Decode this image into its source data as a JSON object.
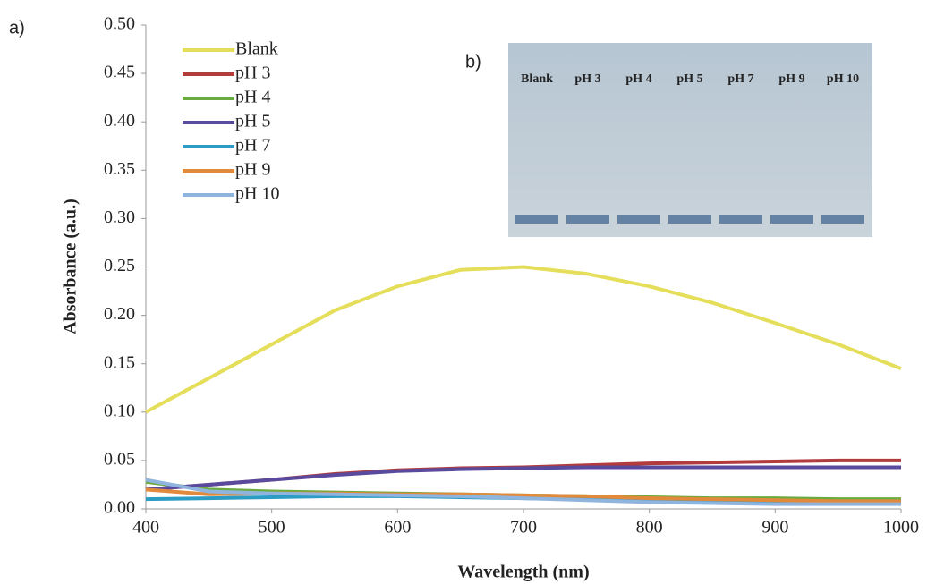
{
  "chart_data": {
    "type": "line",
    "panel_label": "a)",
    "x_label": "Wavelength (nm)",
    "y_label": "Absorbance (a.u.)",
    "x": [
      400,
      450,
      500,
      550,
      600,
      650,
      700,
      750,
      800,
      850,
      900,
      950,
      1000
    ],
    "series": [
      {
        "name": "Blank",
        "color": "#e4de5a",
        "values": [
          0.1,
          0.135,
          0.17,
          0.205,
          0.23,
          0.247,
          0.25,
          0.243,
          0.23,
          0.213,
          0.192,
          0.17,
          0.145
        ]
      },
      {
        "name": "pH 3",
        "color": "#b23b3b",
        "values": [
          0.02,
          0.025,
          0.03,
          0.036,
          0.04,
          0.042,
          0.043,
          0.045,
          0.047,
          0.048,
          0.049,
          0.05,
          0.05
        ]
      },
      {
        "name": "pH 4",
        "color": "#6aaa3f",
        "values": [
          0.028,
          0.02,
          0.018,
          0.017,
          0.016,
          0.015,
          0.014,
          0.013,
          0.012,
          0.011,
          0.011,
          0.01,
          0.01
        ]
      },
      {
        "name": "pH 5",
        "color": "#5a4a9e",
        "values": [
          0.02,
          0.025,
          0.03,
          0.035,
          0.039,
          0.041,
          0.042,
          0.043,
          0.043,
          0.043,
          0.043,
          0.043,
          0.043
        ]
      },
      {
        "name": "pH 7",
        "color": "#2c9cc4",
        "values": [
          0.01,
          0.011,
          0.012,
          0.013,
          0.013,
          0.012,
          0.011,
          0.01,
          0.009,
          0.008,
          0.008,
          0.007,
          0.007
        ]
      },
      {
        "name": "pH 9",
        "color": "#e28a3c",
        "values": [
          0.02,
          0.015,
          0.016,
          0.016,
          0.015,
          0.015,
          0.014,
          0.013,
          0.011,
          0.01,
          0.009,
          0.008,
          0.008
        ]
      },
      {
        "name": "pH 10",
        "color": "#8fb4de",
        "values": [
          0.03,
          0.018,
          0.016,
          0.015,
          0.014,
          0.013,
          0.011,
          0.009,
          0.007,
          0.006,
          0.005,
          0.005,
          0.005
        ]
      }
    ],
    "xlim": [
      400,
      1000
    ],
    "ylim": [
      0,
      0.5
    ],
    "xticks": [
      400,
      500,
      600,
      700,
      800,
      900,
      1000
    ],
    "yticks": [
      {
        "value": 0,
        "label": "0.00"
      },
      {
        "value": 0.05,
        "label": "0.05"
      },
      {
        "value": 0.1,
        "label": "0.10"
      },
      {
        "value": 0.15,
        "label": "0.15"
      },
      {
        "value": 0.2,
        "label": "0.20"
      },
      {
        "value": 0.25,
        "label": "0.25"
      },
      {
        "value": 0.3,
        "label": "0.30"
      },
      {
        "value": 0.35,
        "label": "0.35"
      },
      {
        "value": 0.4,
        "label": "0.40"
      },
      {
        "value": 0.45,
        "label": "0.45"
      },
      {
        "value": 0.5,
        "label": "0.50"
      }
    ],
    "inset": {
      "label": "b)",
      "labels": [
        "Blank",
        "pH 3",
        "pH 4",
        "pH 5",
        "pH 7",
        "pH 9",
        "pH 10"
      ]
    }
  }
}
